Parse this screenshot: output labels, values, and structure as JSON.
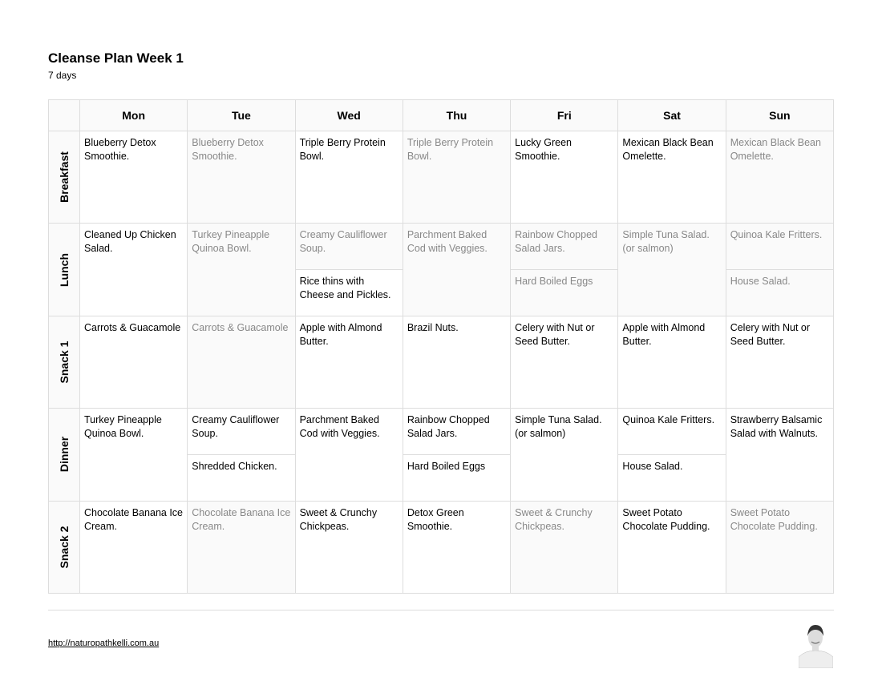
{
  "title": "Cleanse Plan Week 1",
  "subtitle": "7 days",
  "days": [
    "Mon",
    "Tue",
    "Wed",
    "Thu",
    "Fri",
    "Sat",
    "Sun"
  ],
  "meals": [
    {
      "label": "Breakfast",
      "cells": [
        [
          {
            "text": "Blueberry Detox Smoothie.",
            "leftover": false
          }
        ],
        [
          {
            "text": "Blueberry Detox Smoothie.",
            "leftover": true
          }
        ],
        [
          {
            "text": "Triple Berry Protein Bowl.",
            "leftover": false
          }
        ],
        [
          {
            "text": "Triple Berry Protein Bowl.",
            "leftover": true
          }
        ],
        [
          {
            "text": "Lucky Green Smoothie.",
            "leftover": false
          }
        ],
        [
          {
            "text": "Mexican Black Bean Omelette.",
            "leftover": false
          }
        ],
        [
          {
            "text": "Mexican Black Bean Omelette.",
            "leftover": true
          }
        ]
      ]
    },
    {
      "label": "Lunch",
      "cells": [
        [
          {
            "text": "Cleaned Up Chicken Salad.",
            "leftover": false
          }
        ],
        [
          {
            "text": "Turkey Pineapple Quinoa Bowl.",
            "leftover": true
          }
        ],
        [
          {
            "text": "Creamy Cauliflower Soup.",
            "leftover": true
          },
          {
            "text": "Rice thins with Cheese and Pickles.",
            "leftover": false
          }
        ],
        [
          {
            "text": "Parchment Baked Cod with Veggies.",
            "leftover": true
          }
        ],
        [
          {
            "text": "Rainbow Chopped Salad Jars.",
            "leftover": true
          },
          {
            "text": "Hard Boiled Eggs",
            "leftover": true
          }
        ],
        [
          {
            "text": "Simple Tuna Salad. (or salmon)",
            "leftover": true
          }
        ],
        [
          {
            "text": "Quinoa Kale Fritters.",
            "leftover": true
          },
          {
            "text": "House Salad.",
            "leftover": true
          }
        ]
      ]
    },
    {
      "label": "Snack 1",
      "cells": [
        [
          {
            "text": "Carrots & Guacamole",
            "leftover": false
          }
        ],
        [
          {
            "text": "Carrots & Guacamole",
            "leftover": true
          }
        ],
        [
          {
            "text": "Apple with Almond Butter.",
            "leftover": false
          }
        ],
        [
          {
            "text": "Brazil Nuts.",
            "leftover": false
          }
        ],
        [
          {
            "text": "Celery with Nut or Seed Butter.",
            "leftover": false
          }
        ],
        [
          {
            "text": "Apple with Almond Butter.",
            "leftover": false
          }
        ],
        [
          {
            "text": "Celery with Nut or Seed Butter.",
            "leftover": false
          }
        ]
      ]
    },
    {
      "label": "Dinner",
      "cells": [
        [
          {
            "text": "Turkey Pineapple Quinoa Bowl.",
            "leftover": false
          }
        ],
        [
          {
            "text": "Creamy Cauliflower Soup.",
            "leftover": false
          },
          {
            "text": "Shredded Chicken.",
            "leftover": false
          }
        ],
        [
          {
            "text": "Parchment Baked Cod with Veggies.",
            "leftover": false
          }
        ],
        [
          {
            "text": "Rainbow Chopped Salad Jars.",
            "leftover": false
          },
          {
            "text": "Hard Boiled Eggs",
            "leftover": false
          }
        ],
        [
          {
            "text": "Simple Tuna Salad. (or salmon)",
            "leftover": false
          }
        ],
        [
          {
            "text": "Quinoa Kale Fritters.",
            "leftover": false
          },
          {
            "text": "House Salad.",
            "leftover": false
          }
        ],
        [
          {
            "text": "Strawberry Balsamic Salad with Walnuts.",
            "leftover": false
          }
        ]
      ]
    },
    {
      "label": "Snack 2",
      "cells": [
        [
          {
            "text": "Chocolate Banana Ice Cream.",
            "leftover": false
          }
        ],
        [
          {
            "text": "Chocolate Banana Ice Cream.",
            "leftover": true
          }
        ],
        [
          {
            "text": "Sweet & Crunchy Chickpeas.",
            "leftover": false
          }
        ],
        [
          {
            "text": "Detox Green Smoothie.",
            "leftover": false
          }
        ],
        [
          {
            "text": "Sweet & Crunchy Chickpeas.",
            "leftover": true
          }
        ],
        [
          {
            "text": "Sweet Potato Chocolate Pudding.",
            "leftover": false
          }
        ],
        [
          {
            "text": "Sweet Potato Chocolate Pudding.",
            "leftover": true
          }
        ]
      ]
    }
  ],
  "footer": {
    "link": "http://naturopathkelli.com.au"
  }
}
